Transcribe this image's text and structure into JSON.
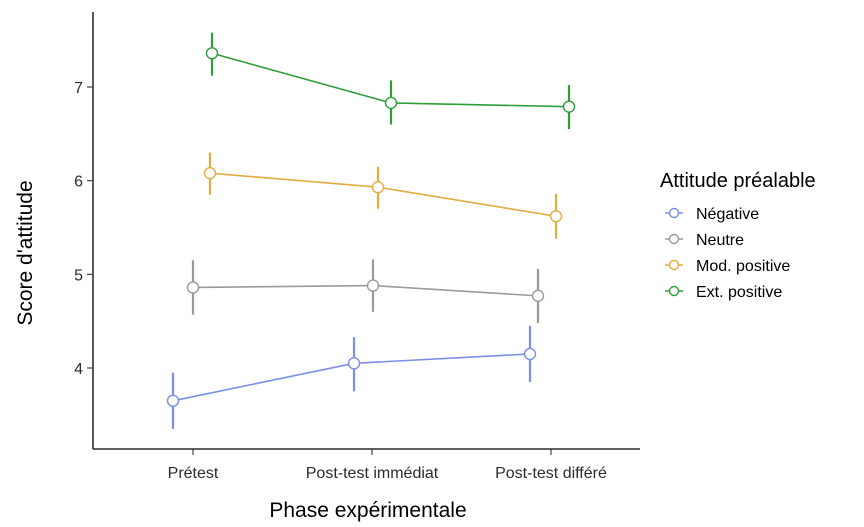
{
  "chart_data": {
    "type": "line",
    "xlabel": "Phase expérimentale",
    "ylabel": "Score d'attitude",
    "categories": [
      "Prétest",
      "Post-test immédiat",
      "Post-test différé"
    ],
    "ylim": [
      3.2,
      7.8
    ],
    "yticks": [
      4,
      5,
      6,
      7
    ],
    "grid": false,
    "legend": {
      "title": "Attitude préalable",
      "placement": "right"
    },
    "series": [
      {
        "name": "Négative",
        "color": "#7b8ee8",
        "values": [
          3.65,
          4.05,
          4.15
        ],
        "err_low": [
          3.35,
          3.75,
          3.85
        ],
        "err_high": [
          3.95,
          4.33,
          4.45
        ]
      },
      {
        "name": "Neutre",
        "color": "#9a9a9a",
        "values": [
          4.86,
          4.88,
          4.77
        ],
        "err_low": [
          4.57,
          4.6,
          4.48
        ],
        "err_high": [
          5.15,
          5.16,
          5.06
        ]
      },
      {
        "name": "Mod. positive",
        "color": "#e3ac3f",
        "values": [
          6.08,
          5.93,
          5.62
        ],
        "err_low": [
          5.85,
          5.7,
          5.38
        ],
        "err_high": [
          6.3,
          6.15,
          5.86
        ]
      },
      {
        "name": "Ext. positive",
        "color": "#2e9e3a",
        "values": [
          7.36,
          6.83,
          6.79
        ],
        "err_low": [
          7.12,
          6.6,
          6.55
        ],
        "err_high": [
          7.58,
          7.07,
          7.02
        ]
      }
    ]
  }
}
